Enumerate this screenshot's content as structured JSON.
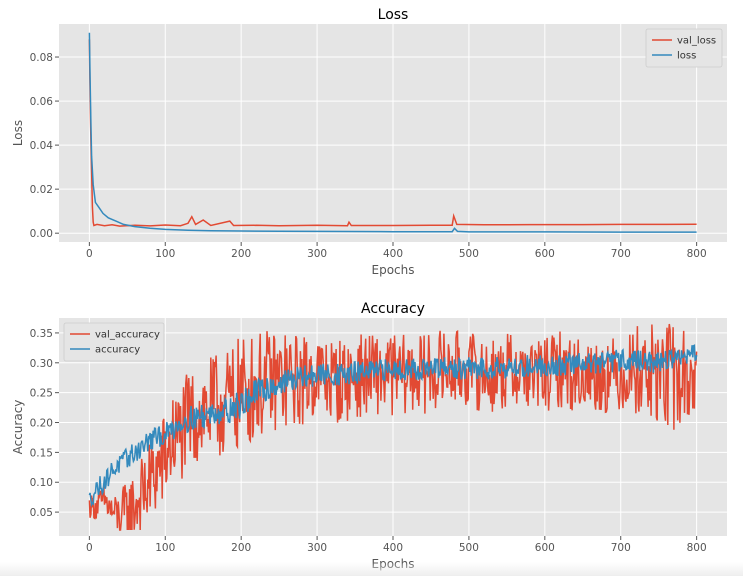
{
  "colors": {
    "val": "#E24A33",
    "train": "#348ABD",
    "plot_bg": "#E5E5E5",
    "grid": "#FFFFFF",
    "text": "#555555",
    "title": "#000000"
  },
  "chart_data": [
    {
      "type": "line",
      "title": "Loss",
      "xlabel": "Epochs",
      "ylabel": "Loss",
      "xlim": [
        -40,
        840
      ],
      "ylim": [
        -0.004,
        0.095
      ],
      "xticks": [
        0,
        100,
        200,
        300,
        400,
        500,
        600,
        700,
        800
      ],
      "yticks": [
        0.0,
        0.02,
        0.04,
        0.06,
        0.08
      ],
      "ytick_labels": [
        "0.00",
        "0.02",
        "0.04",
        "0.06",
        "0.08"
      ],
      "grid": true,
      "legend": "top-right",
      "series": [
        {
          "name": "val_loss",
          "color": "#E24A33",
          "points": [
            [
              0,
              0.088
            ],
            [
              1,
              0.062
            ],
            [
              2,
              0.042
            ],
            [
              3,
              0.028
            ],
            [
              4,
              0.012
            ],
            [
              5,
              0.005
            ],
            [
              6,
              0.0035
            ],
            [
              10,
              0.004
            ],
            [
              20,
              0.0034
            ],
            [
              30,
              0.0038
            ],
            [
              40,
              0.0032
            ],
            [
              60,
              0.0036
            ],
            [
              80,
              0.0033
            ],
            [
              100,
              0.0037
            ],
            [
              120,
              0.0034
            ],
            [
              130,
              0.0045
            ],
            [
              135,
              0.0075
            ],
            [
              140,
              0.004
            ],
            [
              150,
              0.006
            ],
            [
              160,
              0.0035
            ],
            [
              185,
              0.0055
            ],
            [
              190,
              0.0035
            ],
            [
              220,
              0.0036
            ],
            [
              250,
              0.0034
            ],
            [
              300,
              0.0036
            ],
            [
              340,
              0.0034
            ],
            [
              342,
              0.005
            ],
            [
              345,
              0.0035
            ],
            [
              400,
              0.0035
            ],
            [
              450,
              0.0036
            ],
            [
              478,
              0.0036
            ],
            [
              480,
              0.0078
            ],
            [
              484,
              0.004
            ],
            [
              520,
              0.0038
            ],
            [
              580,
              0.0039
            ],
            [
              650,
              0.0039
            ],
            [
              700,
              0.004
            ],
            [
              760,
              0.004
            ],
            [
              800,
              0.0041
            ]
          ]
        },
        {
          "name": "loss",
          "color": "#348ABD",
          "points": [
            [
              0,
              0.091
            ],
            [
              1,
              0.07
            ],
            [
              2,
              0.05
            ],
            [
              3,
              0.035
            ],
            [
              5,
              0.022
            ],
            [
              8,
              0.014
            ],
            [
              12,
              0.012
            ],
            [
              18,
              0.009
            ],
            [
              25,
              0.007
            ],
            [
              35,
              0.0055
            ],
            [
              45,
              0.004
            ],
            [
              60,
              0.003
            ],
            [
              80,
              0.0022
            ],
            [
              100,
              0.0017
            ],
            [
              130,
              0.0013
            ],
            [
              160,
              0.0011
            ],
            [
              200,
              0.001
            ],
            [
              250,
              0.0009
            ],
            [
              300,
              0.0008
            ],
            [
              400,
              0.0007
            ],
            [
              478,
              0.0007
            ],
            [
              481,
              0.0022
            ],
            [
              485,
              0.0008
            ],
            [
              500,
              0.0006
            ],
            [
              600,
              0.0006
            ],
            [
              700,
              0.0005
            ],
            [
              800,
              0.0005
            ]
          ]
        }
      ]
    },
    {
      "type": "line",
      "title": "Accuracy",
      "xlabel": "Epochs",
      "ylabel": "Accuracy",
      "xlim": [
        -40,
        840
      ],
      "ylim": [
        0.01,
        0.375
      ],
      "xticks": [
        0,
        100,
        200,
        300,
        400,
        500,
        600,
        700,
        800
      ],
      "yticks": [
        0.05,
        0.1,
        0.15,
        0.2,
        0.25,
        0.3,
        0.35
      ],
      "ytick_labels": [
        "0.05",
        "0.10",
        "0.15",
        "0.20",
        "0.25",
        "0.30",
        "0.35"
      ],
      "grid": true,
      "legend": "top-left",
      "series": [
        {
          "name": "val_accuracy",
          "color": "#E24A33",
          "points": [
            [
              0,
              0.06
            ],
            [
              10,
              0.06
            ],
            [
              20,
              0.07
            ],
            [
              30,
              0.05
            ],
            [
              40,
              0.04
            ],
            [
              50,
              0.05
            ],
            [
              60,
              0.06
            ],
            [
              70,
              0.08
            ],
            [
              80,
              0.1
            ],
            [
              90,
              0.12
            ],
            [
              100,
              0.14
            ],
            [
              110,
              0.17
            ],
            [
              120,
              0.18
            ],
            [
              130,
              0.2
            ],
            [
              140,
              0.21
            ],
            [
              150,
              0.22
            ],
            [
              160,
              0.22
            ],
            [
              170,
              0.23
            ],
            [
              180,
              0.23
            ],
            [
              190,
              0.24
            ],
            [
              200,
              0.25
            ],
            [
              220,
              0.26
            ],
            [
              240,
              0.27
            ],
            [
              260,
              0.27
            ],
            [
              280,
              0.27
            ],
            [
              300,
              0.28
            ],
            [
              320,
              0.27
            ],
            [
              340,
              0.27
            ],
            [
              360,
              0.28
            ],
            [
              380,
              0.28
            ],
            [
              400,
              0.28
            ],
            [
              420,
              0.28
            ],
            [
              440,
              0.28
            ],
            [
              460,
              0.29
            ],
            [
              480,
              0.29
            ],
            [
              500,
              0.29
            ],
            [
              520,
              0.28
            ],
            [
              540,
              0.28
            ],
            [
              560,
              0.29
            ],
            [
              580,
              0.28
            ],
            [
              600,
              0.28
            ],
            [
              620,
              0.29
            ],
            [
              640,
              0.28
            ],
            [
              660,
              0.28
            ],
            [
              680,
              0.28
            ],
            [
              700,
              0.28
            ],
            [
              720,
              0.29
            ],
            [
              740,
              0.28
            ],
            [
              760,
              0.28
            ],
            [
              780,
              0.27
            ],
            [
              800,
              0.28
            ]
          ],
          "noise": [
            [
              0,
              0.012
            ],
            [
              30,
              0.02
            ],
            [
              50,
              0.035
            ],
            [
              100,
              0.05
            ],
            [
              200,
              0.06
            ],
            [
              300,
              0.045
            ],
            [
              500,
              0.04
            ],
            [
              700,
              0.04
            ],
            [
              760,
              0.06
            ],
            [
              800,
              0.05
            ]
          ]
        },
        {
          "name": "accuracy",
          "color": "#348ABD",
          "points": [
            [
              0,
              0.07
            ],
            [
              10,
              0.09
            ],
            [
              20,
              0.1
            ],
            [
              30,
              0.12
            ],
            [
              40,
              0.13
            ],
            [
              50,
              0.14
            ],
            [
              60,
              0.15
            ],
            [
              70,
              0.16
            ],
            [
              80,
              0.17
            ],
            [
              90,
              0.175
            ],
            [
              100,
              0.18
            ],
            [
              110,
              0.19
            ],
            [
              120,
              0.2
            ],
            [
              130,
              0.205
            ],
            [
              140,
              0.21
            ],
            [
              150,
              0.21
            ],
            [
              160,
              0.215
            ],
            [
              170,
              0.22
            ],
            [
              180,
              0.22
            ],
            [
              190,
              0.225
            ],
            [
              200,
              0.23
            ],
            [
              210,
              0.24
            ],
            [
              220,
              0.25
            ],
            [
              230,
              0.255
            ],
            [
              240,
              0.26
            ],
            [
              250,
              0.265
            ],
            [
              260,
              0.27
            ],
            [
              280,
              0.275
            ],
            [
              300,
              0.28
            ],
            [
              320,
              0.28
            ],
            [
              340,
              0.28
            ],
            [
              360,
              0.285
            ],
            [
              380,
              0.285
            ],
            [
              400,
              0.29
            ],
            [
              420,
              0.29
            ],
            [
              440,
              0.29
            ],
            [
              460,
              0.29
            ],
            [
              480,
              0.29
            ],
            [
              500,
              0.29
            ],
            [
              520,
              0.29
            ],
            [
              540,
              0.295
            ],
            [
              560,
              0.29
            ],
            [
              580,
              0.295
            ],
            [
              600,
              0.295
            ],
            [
              620,
              0.295
            ],
            [
              640,
              0.3
            ],
            [
              660,
              0.3
            ],
            [
              680,
              0.3
            ],
            [
              700,
              0.305
            ],
            [
              720,
              0.305
            ],
            [
              740,
              0.3
            ],
            [
              760,
              0.305
            ],
            [
              780,
              0.31
            ],
            [
              800,
              0.315
            ]
          ],
          "noise": [
            [
              0,
              0.01
            ],
            [
              100,
              0.012
            ],
            [
              200,
              0.015
            ],
            [
              300,
              0.012
            ],
            [
              400,
              0.012
            ],
            [
              500,
              0.012
            ],
            [
              600,
              0.012
            ],
            [
              700,
              0.012
            ],
            [
              800,
              0.01
            ]
          ]
        }
      ]
    }
  ]
}
